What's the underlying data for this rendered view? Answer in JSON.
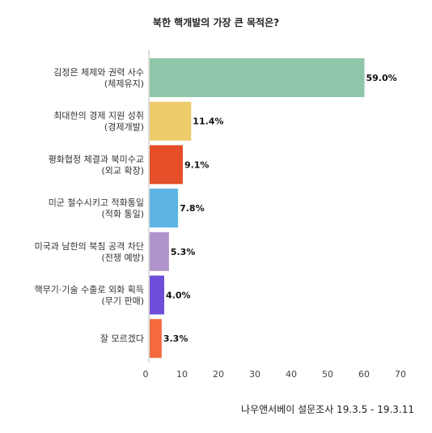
{
  "chart_data": {
    "type": "bar",
    "orientation": "horizontal",
    "title": "북한 핵개발의 가장 큰 목적은?",
    "categories": [
      [
        "김정은 체제와 권력 사수",
        "(체제유지)"
      ],
      [
        "최대한의 경제 지원 성취",
        "(경제개발)"
      ],
      [
        "평화협정 체결과 북미수교",
        "(외교 확장)"
      ],
      [
        "미군 철수시키고 적화통일",
        "(적화 통일)"
      ],
      [
        "미국과 남한의 북침 공격 차단",
        "(전쟁 예방)"
      ],
      [
        "핵무기·기술 수출로 외화 획득",
        "(무기 판매)"
      ],
      [
        "잘 모르겠다"
      ]
    ],
    "values": [
      59.0,
      11.4,
      9.1,
      7.8,
      5.3,
      4.0,
      3.3
    ],
    "value_labels": [
      "59.0%",
      "11.4%",
      "9.1%",
      "7.8%",
      "5.3%",
      "4.0%",
      "3.3%"
    ],
    "colors": [
      "#8fc5a8",
      "#eecb6b",
      "#e44e28",
      "#5cb5e4",
      "#b094c9",
      "#6d4ed9",
      "#f46a3c"
    ],
    "xlim": [
      0,
      70
    ],
    "xticks": [
      "0",
      "10",
      "20",
      "30",
      "40",
      "50",
      "60",
      "70"
    ],
    "grid": false,
    "legend": "none"
  },
  "source": "나우앤서베이 설문조사 19.3.5 - 19.3.11"
}
